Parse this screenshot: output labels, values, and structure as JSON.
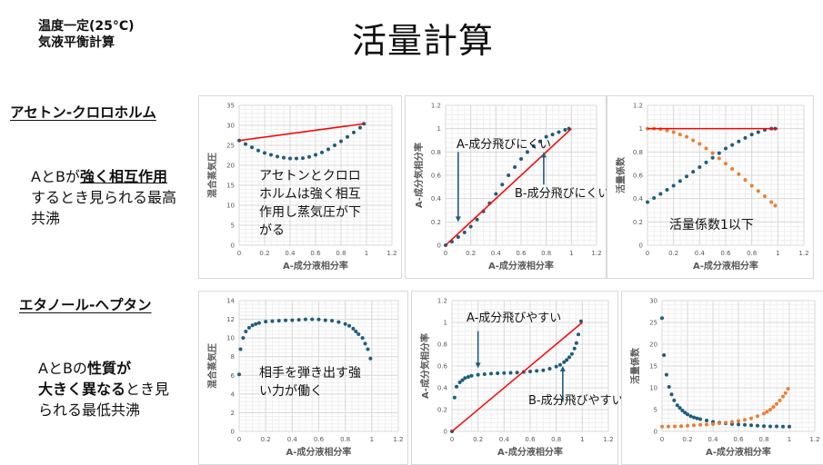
{
  "header": {
    "line1": "温度一定(25°C)",
    "line2": "気液平衡計算"
  },
  "title": "活量計算",
  "sections": [
    {
      "label": "アセトン-クロロホルム",
      "desc": {
        "p1": "AとBが",
        "b1": "強く相互作",
        "b2": "用",
        "p2": "するとき見られる最高共沸"
      }
    },
    {
      "label": "エタノール-ヘプタン",
      "desc": {
        "p1": "AとBの",
        "b1": "性質が",
        "b2": "大きく異なる",
        "p2": "とき見られる最低共沸"
      }
    }
  ],
  "colors": {
    "blue": "#1e5d7c",
    "orange": "#ed7d31",
    "red": "#ff0000",
    "grid": "#d9d9d9",
    "minor_grid": "#efefef"
  },
  "chart_data": [
    {
      "id": "c1",
      "type": "scatter",
      "xlabel": "A-成分液相分率",
      "ylabel": "混合蒸気圧",
      "xlim": [
        0,
        1.2
      ],
      "xticks": [
        "0",
        "0.2",
        "0.4",
        "0.6",
        "0.8",
        "1",
        "1.2"
      ],
      "ylim": [
        0,
        35
      ],
      "ystep": 5,
      "annotation": "アセトンとクロロホルムは強く相互作用し蒸気圧が下がる",
      "series": [
        {
          "color": "blue",
          "mode": "markers",
          "x": [
            0,
            0.05,
            0.1,
            0.15,
            0.2,
            0.25,
            0.3,
            0.35,
            0.4,
            0.45,
            0.5,
            0.55,
            0.6,
            0.65,
            0.7,
            0.75,
            0.8,
            0.85,
            0.9,
            0.95,
            0.98
          ],
          "y": [
            26.2,
            25.3,
            24.5,
            23.7,
            23.1,
            22.6,
            22.2,
            21.9,
            21.7,
            21.7,
            21.8,
            22.1,
            22.6,
            23.2,
            24.0,
            25.0,
            26.0,
            27.1,
            28.2,
            29.4,
            30.4
          ]
        },
        {
          "color": "red",
          "mode": "line",
          "x": [
            0,
            0.98
          ],
          "y": [
            26.2,
            30.4
          ]
        }
      ]
    },
    {
      "id": "c2",
      "type": "scatter",
      "xlabel": "A-成分液相分率",
      "ylabel": "A-成分気相分率",
      "xlim": [
        0,
        1.2
      ],
      "xticks": [
        "0",
        "0.2",
        "0.4",
        "0.6",
        "0.8",
        "1",
        "1.2"
      ],
      "ylim": [
        0,
        1.2
      ],
      "ystep": 0.2,
      "annotations": [
        "A-成分飛びにくい",
        "B-成分飛びにくい"
      ],
      "series": [
        {
          "color": "blue",
          "mode": "markers",
          "x": [
            0,
            0.05,
            0.1,
            0.15,
            0.2,
            0.25,
            0.3,
            0.35,
            0.4,
            0.45,
            0.5,
            0.55,
            0.6,
            0.65,
            0.7,
            0.75,
            0.8,
            0.85,
            0.9,
            0.95,
            0.98
          ],
          "y": [
            0,
            0.03,
            0.07,
            0.11,
            0.16,
            0.22,
            0.29,
            0.36,
            0.44,
            0.52,
            0.6,
            0.67,
            0.74,
            0.8,
            0.85,
            0.89,
            0.93,
            0.95,
            0.97,
            0.99,
            1.0
          ]
        },
        {
          "color": "red",
          "mode": "line",
          "x": [
            0,
            1
          ],
          "y": [
            0,
            1
          ]
        }
      ]
    },
    {
      "id": "c3",
      "type": "scatter",
      "xlabel": "A-成分液相分率",
      "ylabel": "活量係数",
      "xlim": [
        0,
        1.2
      ],
      "xticks": [
        "0",
        "0.2",
        "0.4",
        "0.6",
        "0.8",
        "1",
        "1.2"
      ],
      "ylim": [
        0,
        1.2
      ],
      "ystep": 0.2,
      "annotation": "活量係数1以下",
      "series": [
        {
          "color": "blue",
          "mode": "markers",
          "x": [
            0,
            0.05,
            0.1,
            0.15,
            0.2,
            0.25,
            0.3,
            0.35,
            0.4,
            0.45,
            0.5,
            0.55,
            0.6,
            0.65,
            0.7,
            0.75,
            0.8,
            0.85,
            0.9,
            0.95,
            0.98
          ],
          "y": [
            0.37,
            0.405,
            0.44,
            0.475,
            0.51,
            0.55,
            0.59,
            0.63,
            0.67,
            0.71,
            0.75,
            0.79,
            0.83,
            0.86,
            0.89,
            0.92,
            0.95,
            0.97,
            0.99,
            1.0,
            1.0
          ]
        },
        {
          "color": "orange",
          "mode": "markers",
          "x": [
            0,
            0.05,
            0.1,
            0.15,
            0.2,
            0.25,
            0.3,
            0.35,
            0.4,
            0.45,
            0.5,
            0.55,
            0.6,
            0.65,
            0.7,
            0.75,
            0.8,
            0.85,
            0.9,
            0.95,
            0.98
          ],
          "y": [
            1.0,
            1.0,
            0.995,
            0.985,
            0.97,
            0.95,
            0.93,
            0.9,
            0.87,
            0.83,
            0.79,
            0.745,
            0.7,
            0.655,
            0.61,
            0.56,
            0.51,
            0.465,
            0.42,
            0.37,
            0.34
          ]
        },
        {
          "color": "red",
          "mode": "line",
          "x": [
            0,
            1
          ],
          "y": [
            1,
            1
          ]
        }
      ]
    },
    {
      "id": "c4",
      "type": "scatter",
      "xlabel": "A-成分液相分率",
      "ylabel": "混合蒸気圧",
      "xlim": [
        0,
        1.2
      ],
      "xticks": [
        "0",
        "0.2",
        "0.4",
        "0.6",
        "0.8",
        "1",
        "1.2"
      ],
      "ylim": [
        0,
        14
      ],
      "ystep": 2,
      "annotation": "相手を弾き出す強い力が働く",
      "series": [
        {
          "color": "blue",
          "mode": "markers",
          "x": [
            0,
            0.01,
            0.03,
            0.05,
            0.075,
            0.1,
            0.125,
            0.15,
            0.2,
            0.25,
            0.3,
            0.35,
            0.4,
            0.45,
            0.5,
            0.55,
            0.6,
            0.65,
            0.7,
            0.75,
            0.8,
            0.83,
            0.86,
            0.88,
            0.9,
            0.93,
            0.95,
            0.97,
            0.99
          ],
          "y": [
            6.1,
            8.8,
            10.0,
            10.7,
            11.1,
            11.35,
            11.5,
            11.6,
            11.75,
            11.8,
            11.85,
            11.88,
            11.9,
            11.95,
            12.0,
            12.0,
            11.98,
            11.9,
            11.85,
            11.7,
            11.5,
            11.3,
            11.0,
            10.7,
            10.4,
            10.0,
            9.4,
            8.8,
            7.8
          ]
        }
      ]
    },
    {
      "id": "c5",
      "type": "scatter",
      "xlabel": "A-成分液相分率",
      "ylabel": "A-成分気相分率",
      "xlim": [
        0,
        1.2
      ],
      "xticks": [
        "0",
        "0.2",
        "0.4",
        "0.6",
        "0.8",
        "1",
        "1.2"
      ],
      "ylim": [
        0,
        1.2
      ],
      "ystep": 0.2,
      "annotations": [
        "A-成分飛びやすい",
        "B-成分飛びやすい"
      ],
      "series": [
        {
          "color": "blue",
          "mode": "markers",
          "x": [
            0,
            0.02,
            0.035,
            0.06,
            0.08,
            0.1,
            0.125,
            0.15,
            0.2,
            0.25,
            0.3,
            0.35,
            0.4,
            0.45,
            0.5,
            0.55,
            0.6,
            0.65,
            0.7,
            0.75,
            0.8,
            0.83,
            0.86,
            0.88,
            0.9,
            0.92,
            0.94,
            0.955,
            0.97,
            0.99
          ],
          "y": [
            0,
            0.31,
            0.41,
            0.45,
            0.47,
            0.49,
            0.5,
            0.51,
            0.52,
            0.525,
            0.53,
            0.533,
            0.535,
            0.538,
            0.54,
            0.545,
            0.55,
            0.555,
            0.56,
            0.575,
            0.595,
            0.61,
            0.635,
            0.655,
            0.68,
            0.71,
            0.76,
            0.81,
            0.89,
            1.01
          ]
        },
        {
          "color": "red",
          "mode": "line",
          "x": [
            0,
            1
          ],
          "y": [
            0,
            1
          ]
        }
      ]
    },
    {
      "id": "c6",
      "type": "scatter",
      "xlabel": "A-成分液相分率",
      "ylabel": "活量係数",
      "xlim": [
        0,
        1.2
      ],
      "xticks": [
        "0",
        "0.2",
        "0.4",
        "0.6",
        "0.8",
        "1",
        "1.2"
      ],
      "ylim": [
        0,
        30
      ],
      "ystep": 5,
      "series": [
        {
          "color": "blue",
          "mode": "markers",
          "x": [
            0,
            0.015,
            0.035,
            0.055,
            0.075,
            0.095,
            0.12,
            0.14,
            0.16,
            0.18,
            0.2,
            0.225,
            0.25,
            0.275,
            0.3,
            0.35,
            0.4,
            0.45,
            0.5,
            0.55,
            0.6,
            0.65,
            0.7,
            0.75,
            0.8,
            0.85,
            0.9,
            0.95,
            1.0
          ],
          "y": [
            26,
            17.5,
            13,
            10.2,
            8.5,
            7.1,
            6.0,
            5.4,
            4.8,
            4.3,
            3.9,
            3.5,
            3.2,
            3.0,
            2.8,
            2.5,
            2.2,
            2.0,
            1.85,
            1.7,
            1.6,
            1.5,
            1.4,
            1.3,
            1.2,
            1.15,
            1.15,
            1.1,
            1.1
          ]
        },
        {
          "color": "orange",
          "mode": "markers",
          "x": [
            0,
            0.05,
            0.1,
            0.15,
            0.2,
            0.25,
            0.3,
            0.35,
            0.4,
            0.45,
            0.5,
            0.55,
            0.6,
            0.65,
            0.7,
            0.75,
            0.8,
            0.825,
            0.85,
            0.875,
            0.9,
            0.925,
            0.95,
            0.97,
            0.99
          ],
          "y": [
            1.1,
            1.12,
            1.15,
            1.2,
            1.3,
            1.4,
            1.5,
            1.6,
            1.7,
            1.85,
            2.0,
            2.2,
            2.4,
            2.65,
            3.0,
            3.5,
            4.1,
            4.5,
            5.0,
            5.6,
            6.3,
            7.1,
            8.0,
            8.8,
            9.8
          ]
        }
      ]
    }
  ]
}
